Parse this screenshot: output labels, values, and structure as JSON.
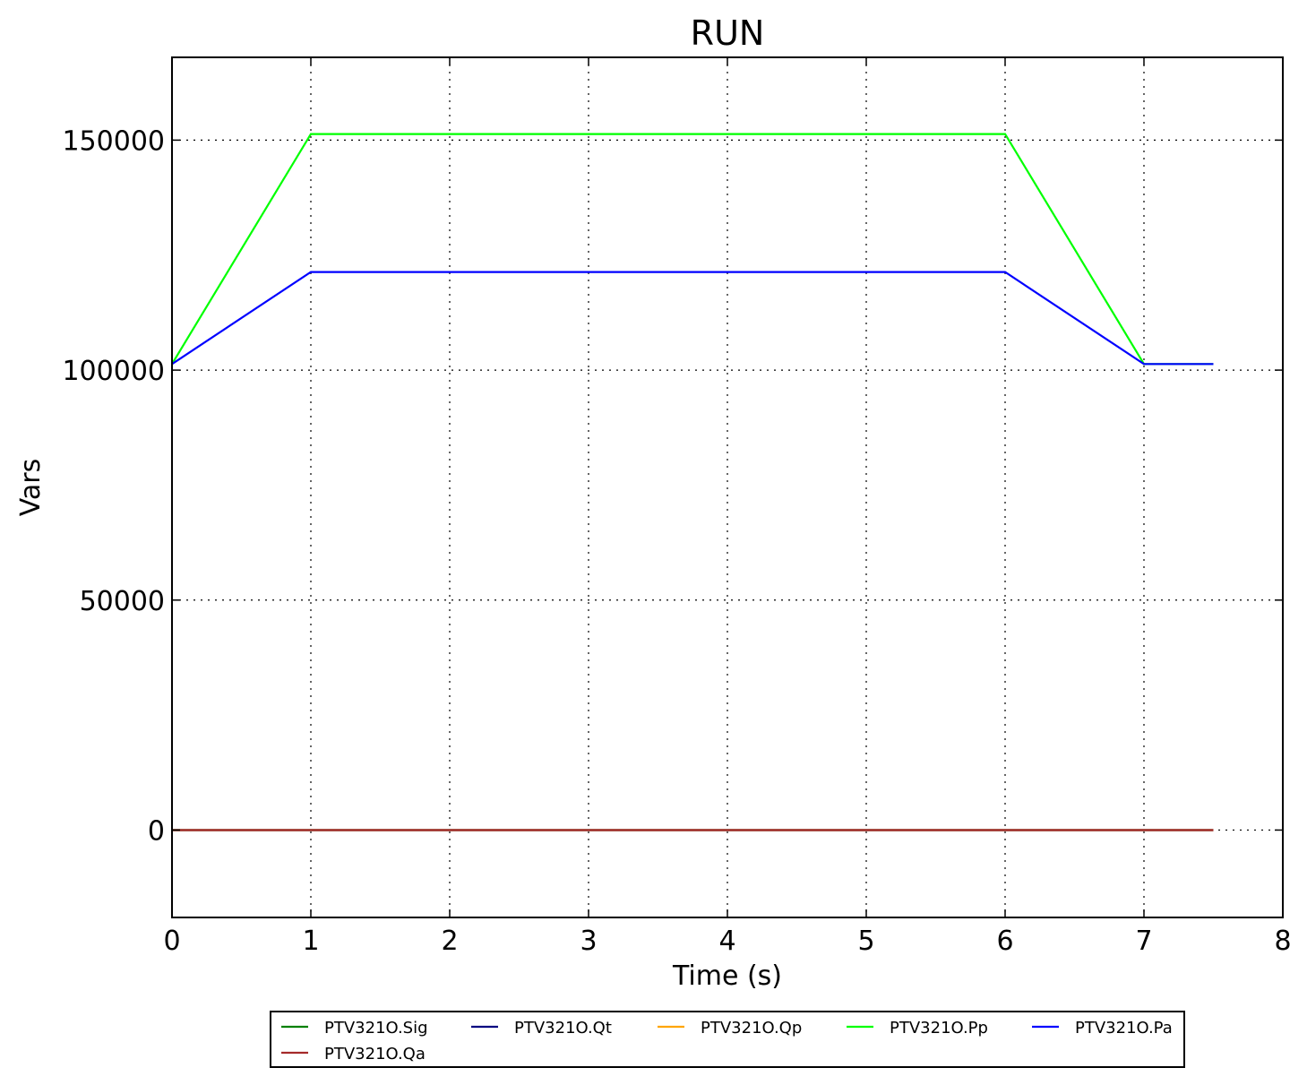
{
  "chart_data": {
    "type": "line",
    "title": "RUN",
    "xlabel": "Time (s)",
    "ylabel": "Vars",
    "xlim": [
      0,
      8
    ],
    "ylim": [
      -19000,
      168000
    ],
    "xticks": [
      0,
      1,
      2,
      3,
      4,
      5,
      6,
      7,
      8
    ],
    "xtick_labels": [
      "0",
      "1",
      "2",
      "3",
      "4",
      "5",
      "6",
      "7",
      "8"
    ],
    "yticks": [
      0,
      50000,
      100000,
      150000
    ],
    "ytick_labels": [
      "0",
      "50000",
      "100000",
      "150000"
    ],
    "grid": true,
    "legend_placement": "bottom-center",
    "series": [
      {
        "name": "PTV321O.Sig",
        "color": "#008000",
        "x": [
          0,
          7.5
        ],
        "y": [
          0,
          0
        ]
      },
      {
        "name": "PTV321O.Qt",
        "color": "#000080",
        "x": [
          0,
          7.5
        ],
        "y": [
          0,
          0
        ]
      },
      {
        "name": "PTV321O.Qp",
        "color": "#FFA500",
        "x": [
          0,
          7.5
        ],
        "y": [
          0,
          0
        ]
      },
      {
        "name": "PTV321O.Pp",
        "color": "#00FF00",
        "x": [
          0,
          1,
          6,
          7,
          7.5
        ],
        "y": [
          101325,
          151325,
          151325,
          101325,
          101325
        ]
      },
      {
        "name": "PTV321O.Pa",
        "color": "#0000FF",
        "x": [
          0,
          1,
          6,
          7,
          7.5
        ],
        "y": [
          101325,
          121325,
          121325,
          101325,
          101325
        ]
      },
      {
        "name": "PTV321O.Qa",
        "color": "#A52A2A",
        "x": [
          0,
          7.5
        ],
        "y": [
          0,
          0
        ]
      }
    ]
  }
}
